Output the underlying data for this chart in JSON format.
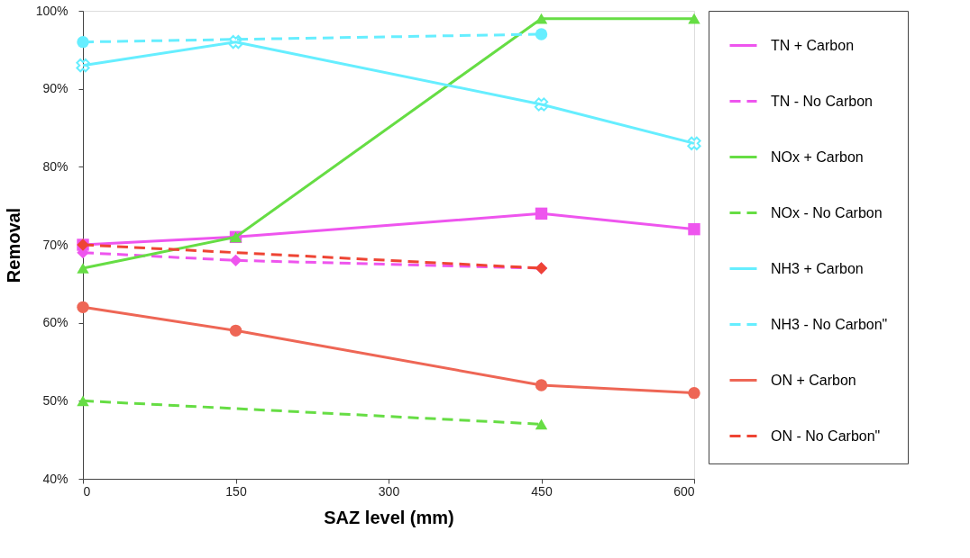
{
  "chart_data": {
    "type": "line",
    "xlabel": "SAZ level (mm)",
    "ylabel": "Removal",
    "xlim": [
      0,
      600
    ],
    "xticks": [
      0,
      150,
      300,
      450,
      600
    ],
    "ylim": [
      40,
      100
    ],
    "yticks": [
      {
        "value": 40,
        "label": "40%"
      },
      {
        "value": 50,
        "label": "50%"
      },
      {
        "value": 60,
        "label": "60%"
      },
      {
        "value": 70,
        "label": "70%"
      },
      {
        "value": 80,
        "label": "80%"
      },
      {
        "value": 90,
        "label": "90%"
      },
      {
        "value": 100,
        "label": "100%"
      }
    ],
    "grid": false,
    "legend": "right",
    "series": [
      {
        "name": "TN + Carbon",
        "color": "#ee55ee",
        "marker": "square",
        "line_style": "solid",
        "x": [
          0,
          150,
          450,
          600
        ],
        "values": [
          70,
          71,
          74,
          72
        ]
      },
      {
        "name": "TN - No Carbon",
        "color": "#ee55ee",
        "marker": "diamond",
        "line_style": "dashed",
        "x": [
          0,
          150,
          450
        ],
        "values": [
          69,
          68,
          67
        ]
      },
      {
        "name": "NOx + Carbon",
        "color": "#66dd44",
        "marker": "triangle",
        "line_style": "solid",
        "x": [
          0,
          150,
          450,
          600
        ],
        "values": [
          67,
          71,
          99,
          99
        ]
      },
      {
        "name": "NOx - No Carbon",
        "color": "#66dd44",
        "marker": "triangle",
        "line_style": "dashed",
        "x": [
          0,
          450
        ],
        "values": [
          50,
          47
        ]
      },
      {
        "name": "NH3 + Carbon",
        "color": "#66eeff",
        "marker": "cross",
        "line_style": "solid",
        "x": [
          0,
          150,
          450,
          600
        ],
        "values": [
          93,
          96,
          88,
          83
        ]
      },
      {
        "name": "NH3 - No Carbon\"",
        "color": "#66eeff",
        "marker": "circle",
        "line_style": "dashed",
        "x": [
          0,
          450
        ],
        "values": [
          96,
          97
        ]
      },
      {
        "name": "ON + Carbon",
        "color": "#ee6655",
        "marker": "circle",
        "line_style": "solid",
        "x": [
          0,
          150,
          450,
          600
        ],
        "values": [
          62,
          59,
          52,
          51
        ]
      },
      {
        "name": "ON - No Carbon\"",
        "color": "#ee4433",
        "marker": "diamond",
        "line_style": "dashed",
        "x": [
          0,
          450
        ],
        "values": [
          70,
          67
        ]
      }
    ]
  }
}
